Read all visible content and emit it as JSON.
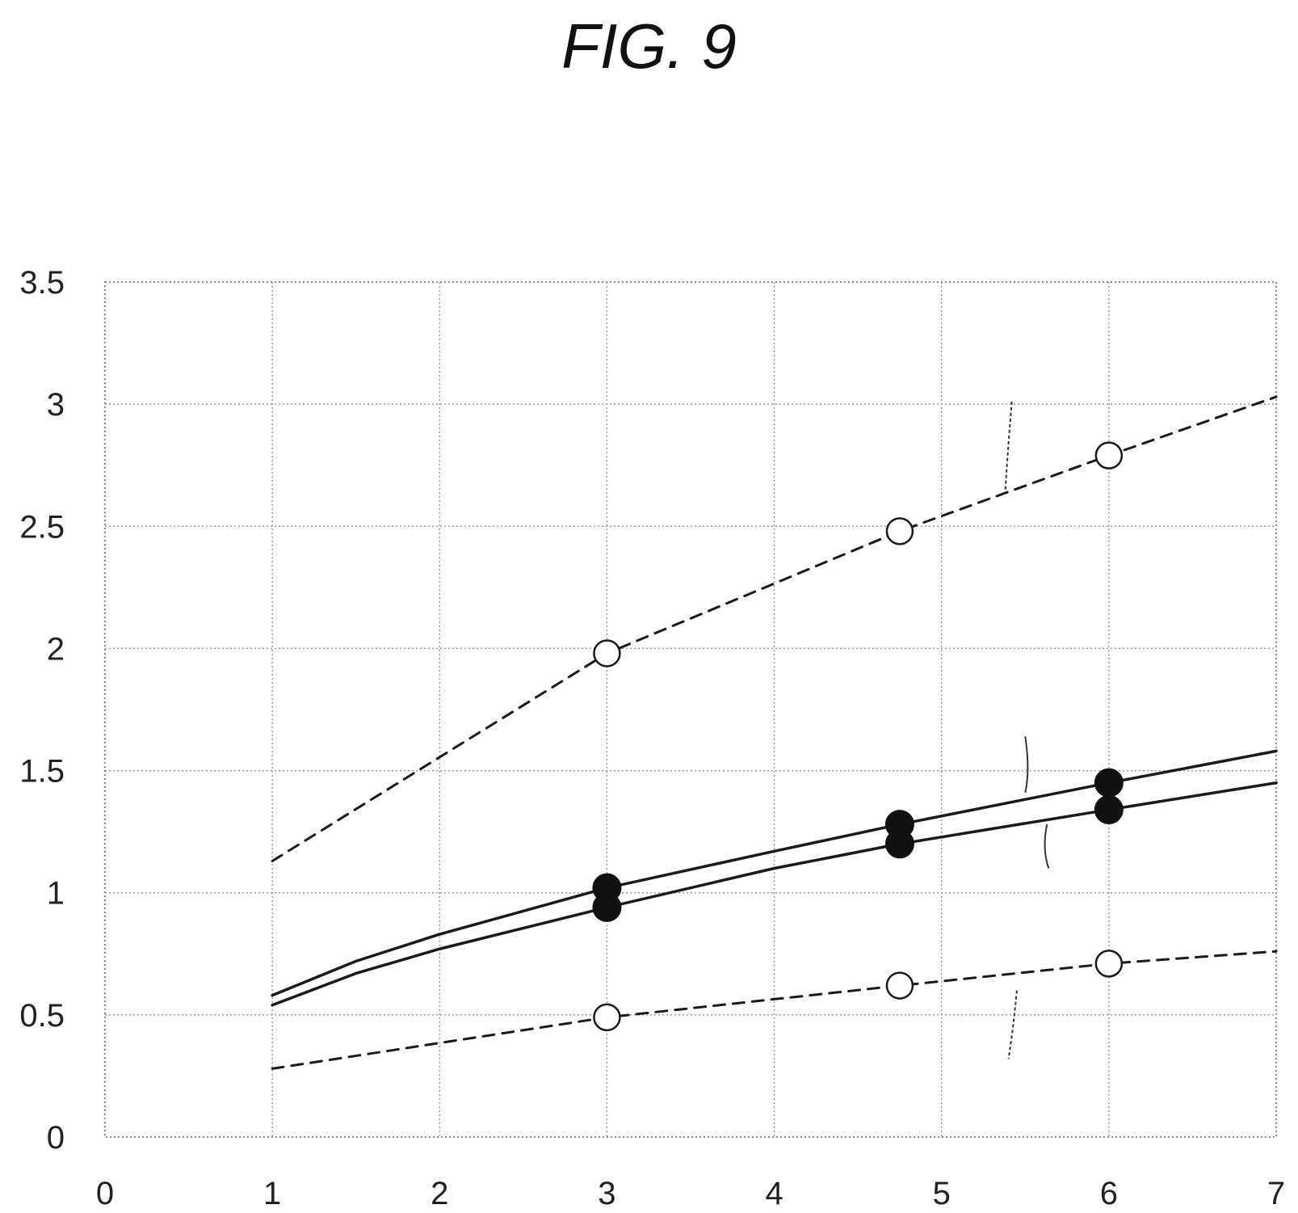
{
  "figure_title": "FIG. 9",
  "chart_data": {
    "type": "line",
    "title": "",
    "xlabel": "",
    "ylabel": "",
    "xlim": [
      0,
      7
    ],
    "ylim": [
      0,
      3.5
    ],
    "grid": true,
    "x_ticks": [
      "0",
      "1",
      "2",
      "3",
      "4",
      "5",
      "6",
      "7"
    ],
    "y_ticks": [
      "0",
      "0.5",
      "1",
      "1.5",
      "2",
      "2.5",
      "3",
      "3.5"
    ],
    "series": [
      {
        "style": "dashed",
        "marker": "open-circle",
        "x": [
          1,
          3,
          4.75,
          6,
          7
        ],
        "y": [
          1.13,
          1.98,
          2.48,
          2.79,
          3.03
        ],
        "marker_x": [
          3,
          4.75,
          6
        ],
        "marker_y": [
          1.98,
          2.48,
          2.79
        ]
      },
      {
        "style": "solid",
        "marker": "filled-circle",
        "x": [
          1,
          1.5,
          2,
          3,
          4,
          4.75,
          6,
          7
        ],
        "y": [
          0.58,
          0.72,
          0.83,
          1.02,
          1.17,
          1.28,
          1.45,
          1.58
        ],
        "marker_x": [
          3,
          4.75,
          6
        ],
        "marker_y": [
          1.02,
          1.28,
          1.45
        ]
      },
      {
        "style": "solid",
        "marker": "filled-circle",
        "x": [
          1,
          1.5,
          2,
          3,
          4,
          4.75,
          6,
          7
        ],
        "y": [
          0.54,
          0.67,
          0.77,
          0.94,
          1.1,
          1.2,
          1.34,
          1.45
        ],
        "marker_x": [
          3,
          4.75,
          6
        ],
        "marker_y": [
          0.94,
          1.2,
          1.34
        ]
      },
      {
        "style": "dashed",
        "marker": "open-circle",
        "x": [
          1,
          3,
          4.75,
          6,
          7
        ],
        "y": [
          0.28,
          0.49,
          0.62,
          0.71,
          0.76
        ],
        "marker_x": [
          3,
          4.75,
          6
        ],
        "marker_y": [
          0.49,
          0.62,
          0.71
        ]
      }
    ],
    "leaders": [
      {
        "points": [
          [
            5.42,
            3.01
          ],
          [
            5.4,
            2.85
          ],
          [
            5.38,
            2.64
          ]
        ]
      },
      {
        "points": [
          [
            5.5,
            1.64
          ],
          [
            5.53,
            1.5
          ],
          [
            5.5,
            1.41
          ]
        ]
      },
      {
        "points": [
          [
            5.63,
            1.28
          ],
          [
            5.6,
            1.18
          ],
          [
            5.64,
            1.1
          ]
        ]
      },
      {
        "points": [
          [
            5.45,
            0.6
          ],
          [
            5.43,
            0.45
          ],
          [
            5.4,
            0.32
          ]
        ]
      }
    ]
  }
}
